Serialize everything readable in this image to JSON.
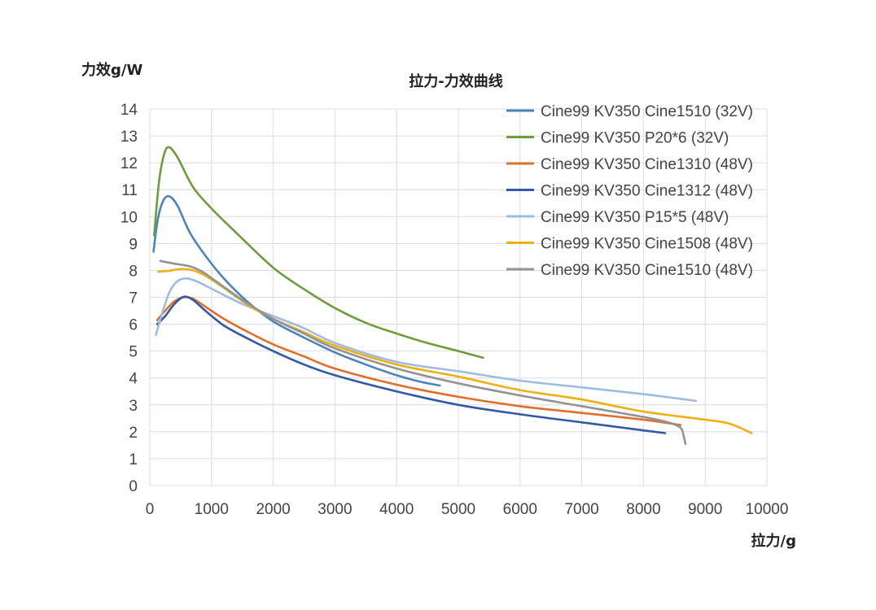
{
  "chart_data": {
    "type": "line",
    "title": "拉力-力效曲线",
    "xlabel": "拉力/g",
    "ylabel": "力效g/W",
    "xlim": [
      0,
      10000
    ],
    "ylim": [
      0,
      14
    ],
    "xticks": [
      0,
      1000,
      2000,
      3000,
      4000,
      5000,
      6000,
      7000,
      8000,
      9000,
      10000
    ],
    "yticks": [
      0,
      1,
      2,
      3,
      4,
      5,
      6,
      7,
      8,
      9,
      10,
      11,
      12,
      13,
      14
    ],
    "grid": true,
    "legend_position": "top-right",
    "series": [
      {
        "name": "Cine99 KV350 Cine1510 (32V)",
        "color": "#4A84BF",
        "points": [
          [
            60,
            8.7
          ],
          [
            130,
            9.9
          ],
          [
            220,
            10.6
          ],
          [
            320,
            10.75
          ],
          [
            450,
            10.4
          ],
          [
            650,
            9.4
          ],
          [
            900,
            8.55
          ],
          [
            1200,
            7.7
          ],
          [
            1600,
            6.8
          ],
          [
            2000,
            6.1
          ],
          [
            2500,
            5.5
          ],
          [
            3000,
            4.95
          ],
          [
            3500,
            4.5
          ],
          [
            4000,
            4.1
          ],
          [
            4400,
            3.85
          ],
          [
            4700,
            3.72
          ]
        ]
      },
      {
        "name": "Cine99 KV350 P20*6 (32V)",
        "color": "#6C9E3A",
        "points": [
          [
            70,
            9.3
          ],
          [
            150,
            11.3
          ],
          [
            230,
            12.3
          ],
          [
            310,
            12.58
          ],
          [
            450,
            12.2
          ],
          [
            700,
            11.1
          ],
          [
            1000,
            10.3
          ],
          [
            1400,
            9.4
          ],
          [
            2000,
            8.1
          ],
          [
            2500,
            7.3
          ],
          [
            3000,
            6.6
          ],
          [
            3500,
            6.05
          ],
          [
            4000,
            5.65
          ],
          [
            4500,
            5.3
          ],
          [
            5000,
            5.0
          ],
          [
            5400,
            4.75
          ]
        ]
      },
      {
        "name": "Cine99 KV350 Cine1310 (48V)",
        "color": "#E16E2A",
        "points": [
          [
            120,
            6.15
          ],
          [
            250,
            6.5
          ],
          [
            400,
            6.85
          ],
          [
            550,
            7.0
          ],
          [
            700,
            6.95
          ],
          [
            900,
            6.65
          ],
          [
            1200,
            6.2
          ],
          [
            1600,
            5.7
          ],
          [
            2000,
            5.25
          ],
          [
            2500,
            4.8
          ],
          [
            3000,
            4.35
          ],
          [
            4000,
            3.75
          ],
          [
            5000,
            3.3
          ],
          [
            6000,
            2.95
          ],
          [
            7000,
            2.7
          ],
          [
            8000,
            2.45
          ],
          [
            8600,
            2.25
          ]
        ]
      },
      {
        "name": "Cine99 KV350 Cine1312 (48V)",
        "color": "#3159A7",
        "points": [
          [
            120,
            6.0
          ],
          [
            250,
            6.3
          ],
          [
            400,
            6.75
          ],
          [
            550,
            7.02
          ],
          [
            700,
            6.9
          ],
          [
            900,
            6.5
          ],
          [
            1200,
            5.95
          ],
          [
            1600,
            5.45
          ],
          [
            2000,
            5.0
          ],
          [
            2500,
            4.5
          ],
          [
            3000,
            4.1
          ],
          [
            4000,
            3.5
          ],
          [
            5000,
            3.0
          ],
          [
            6000,
            2.65
          ],
          [
            7000,
            2.35
          ],
          [
            8000,
            2.05
          ],
          [
            8350,
            1.95
          ]
        ]
      },
      {
        "name": "Cine99 KV350 P15*5 (48V)",
        "color": "#9DBCE3",
        "points": [
          [
            100,
            5.6
          ],
          [
            200,
            6.4
          ],
          [
            320,
            7.2
          ],
          [
            450,
            7.6
          ],
          [
            600,
            7.7
          ],
          [
            800,
            7.55
          ],
          [
            1100,
            7.2
          ],
          [
            1500,
            6.75
          ],
          [
            2000,
            6.3
          ],
          [
            2500,
            5.85
          ],
          [
            3000,
            5.3
          ],
          [
            4000,
            4.6
          ],
          [
            5000,
            4.25
          ],
          [
            6000,
            3.9
          ],
          [
            7000,
            3.65
          ],
          [
            8000,
            3.4
          ],
          [
            8850,
            3.15
          ]
        ]
      },
      {
        "name": "Cine99 KV350 Cine1508 (48V)",
        "color": "#EEB011",
        "points": [
          [
            140,
            7.95
          ],
          [
            300,
            7.98
          ],
          [
            500,
            8.05
          ],
          [
            700,
            8.0
          ],
          [
            900,
            7.8
          ],
          [
            1200,
            7.35
          ],
          [
            1600,
            6.7
          ],
          [
            2000,
            6.2
          ],
          [
            2500,
            5.7
          ],
          [
            3000,
            5.2
          ],
          [
            4000,
            4.5
          ],
          [
            5000,
            4.05
          ],
          [
            6000,
            3.55
          ],
          [
            7000,
            3.2
          ],
          [
            8000,
            2.75
          ],
          [
            9000,
            2.45
          ],
          [
            9400,
            2.3
          ],
          [
            9750,
            1.95
          ]
        ]
      },
      {
        "name": "Cine99 KV350 Cine1510 (48V)",
        "color": "#939393",
        "points": [
          [
            170,
            8.35
          ],
          [
            400,
            8.25
          ],
          [
            650,
            8.15
          ],
          [
            850,
            7.95
          ],
          [
            1100,
            7.55
          ],
          [
            1500,
            6.9
          ],
          [
            2000,
            6.2
          ],
          [
            2500,
            5.65
          ],
          [
            3000,
            5.1
          ],
          [
            4000,
            4.35
          ],
          [
            5000,
            3.8
          ],
          [
            6000,
            3.35
          ],
          [
            7000,
            2.95
          ],
          [
            8000,
            2.55
          ],
          [
            8400,
            2.35
          ],
          [
            8600,
            2.15
          ],
          [
            8650,
            1.85
          ],
          [
            8680,
            1.55
          ]
        ]
      }
    ]
  }
}
